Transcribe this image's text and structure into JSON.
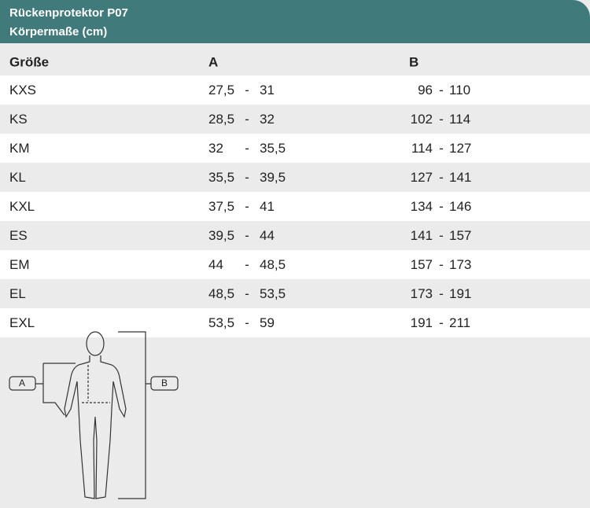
{
  "header": {
    "title": "Rückenprotektor P07",
    "subtitle": "Körpermaße (cm)"
  },
  "table": {
    "columns": [
      "Größe",
      "A",
      "B"
    ],
    "separator": "-",
    "rows": [
      [
        "KXS",
        "27,5",
        "31",
        "96",
        "110"
      ],
      [
        "KS",
        "28,5",
        "32",
        "102",
        "114"
      ],
      [
        "KM",
        "32",
        "35,5",
        "114",
        "127"
      ],
      [
        "KL",
        "35,5",
        "39,5",
        "127",
        "141"
      ],
      [
        "KXL",
        "37,5",
        "41",
        "134",
        "146"
      ],
      [
        "ES",
        "39,5",
        "44",
        "141",
        "157"
      ],
      [
        "EM",
        "44",
        "48,5",
        "157",
        "173"
      ],
      [
        "EL",
        "48,5",
        "53,5",
        "173",
        "191"
      ],
      [
        "EXL",
        "53,5",
        "59",
        "191",
        "211"
      ]
    ]
  },
  "figure": {
    "label_a": "A",
    "label_b": "B"
  }
}
